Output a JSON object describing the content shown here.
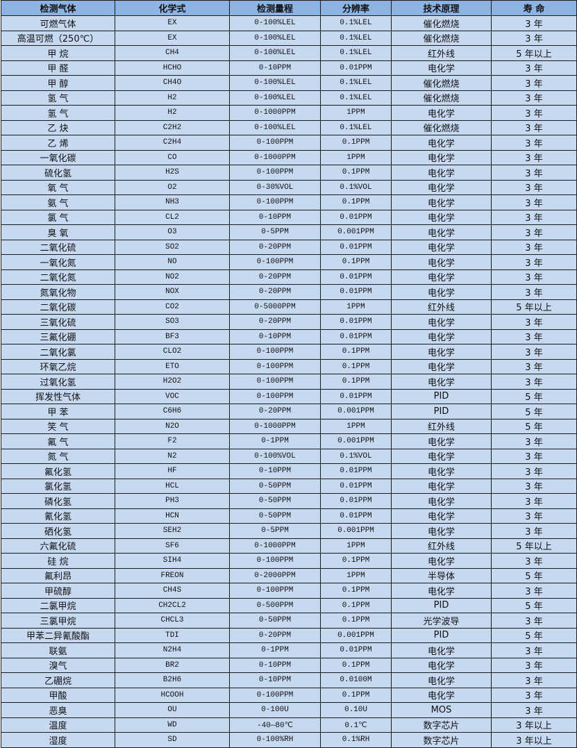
{
  "table": {
    "headers": [
      "检测气体",
      "化学式",
      "检测量程",
      "分辨率",
      "技术原理",
      "寿 命"
    ],
    "rows": [
      [
        "可燃气体",
        "EX",
        "0-100%LEL",
        "0.1%LEL",
        "催化燃烧",
        "3 年"
      ],
      [
        "高温可燃（250℃）",
        "EX",
        "0-100%LEL",
        "0.1%LEL",
        "催化燃烧",
        "3 年"
      ],
      [
        "甲 烷",
        "CH4",
        "0-100%LEL",
        "0.1%LEL",
        "红外线",
        "5 年以上"
      ],
      [
        "甲 醛",
        "HCHO",
        "0-10PPM",
        "0.01PPM",
        "电化学",
        "3 年"
      ],
      [
        "甲 醇",
        "CH4O",
        "0-100%LEL",
        "0.1%LEL",
        "催化燃烧",
        "3 年"
      ],
      [
        "氢 气",
        "H2",
        "0-100%LEL",
        "0.1%LEL",
        "催化燃烧",
        "3 年"
      ],
      [
        "氢 气",
        "H2",
        "0-1000PPM",
        "1PPM",
        "电化学",
        "3 年"
      ],
      [
        "乙 炔",
        "C2H2",
        "0-100%LEL",
        "0.1%LEL",
        "催化燃烧",
        "3 年"
      ],
      [
        "乙 烯",
        "C2H4",
        "0-100PPM",
        "0.1PPM",
        "电化学",
        "3 年"
      ],
      [
        "一氧化碳",
        "CO",
        "0-1000PPM",
        "1PPM",
        "电化学",
        "3 年"
      ],
      [
        "硫化氢",
        "H2S",
        "0-100PPM",
        "0.1PPM",
        "电化学",
        "3 年"
      ],
      [
        "氧 气",
        "O2",
        "0-30%VOL",
        "0.1%VOL",
        "电化学",
        "3 年"
      ],
      [
        "氨 气",
        "NH3",
        "0-100PPM",
        "0.1PPM",
        "电化学",
        "3 年"
      ],
      [
        "氯 气",
        "CL2",
        "0-10PPM",
        "0.01PPM",
        "电化学",
        "3 年"
      ],
      [
        "臭 氧",
        "O3",
        "0-5PPM",
        "0.001PPM",
        "电化学",
        "3 年"
      ],
      [
        "二氧化硫",
        "SO2",
        "0-20PPM",
        "0.01PPM",
        "电化学",
        "3 年"
      ],
      [
        "一氧化氮",
        "NO",
        "0-100PPM",
        "0.1PPM",
        "电化学",
        "3 年"
      ],
      [
        "二氧化氮",
        "NO2",
        "0-20PPM",
        "0.01PPM",
        "电化学",
        "3 年"
      ],
      [
        "氮氧化物",
        "NOX",
        "0-20PPM",
        "0.01PPM",
        "电化学",
        "3 年"
      ],
      [
        "二氧化碳",
        "CO2",
        "0-5000PPM",
        "1PPM",
        "红外线",
        "5 年以上"
      ],
      [
        "三氧化硫",
        "SO3",
        "0-20PPM",
        "0.01PPM",
        "电化学",
        "3 年"
      ],
      [
        "三氟化硼",
        "BF3",
        "0-10PPM",
        "0.01PPM",
        "电化学",
        "3 年"
      ],
      [
        "二氧化氯",
        "CLO2",
        "0-100PPM",
        "0.1PPM",
        "电化学",
        "3 年"
      ],
      [
        "环氧乙烷",
        "ETO",
        "0-100PPM",
        "0.1PPM",
        "电化学",
        "3 年"
      ],
      [
        "过氧化氢",
        "H2O2",
        "0-100PPM",
        "0.1PPM",
        "电化学",
        "3 年"
      ],
      [
        "挥发性气体",
        "VOC",
        "0-100PPM",
        "0.01PPM",
        "PID",
        "5 年"
      ],
      [
        "甲 苯",
        "C6H6",
        "0-20PPM",
        "0.001PPM",
        "PID",
        "5 年"
      ],
      [
        "笑 气",
        "N2O",
        "0-1000PPM",
        "1PPM",
        "红外线",
        "5 年"
      ],
      [
        "氟 气",
        "F2",
        "0-1PPM",
        "0.001PPM",
        "电化学",
        "3 年"
      ],
      [
        "氮 气",
        "N2",
        "0-100%VOL",
        "0.1%VOL",
        "电化学",
        "3 年"
      ],
      [
        "氟化氢",
        "HF",
        "0-10PPM",
        "0.01PPM",
        "电化学",
        "3 年"
      ],
      [
        "氯化氢",
        "HCL",
        "0-50PPM",
        "0.01PPM",
        "电化学",
        "3 年"
      ],
      [
        "磷化氢",
        "PH3",
        "0-50PPM",
        "0.01PPM",
        "电化学",
        "3 年"
      ],
      [
        "氰化氢",
        "HCN",
        "0-50PPM",
        "0.01PPM",
        "电化学",
        "3 年"
      ],
      [
        "硒化氢",
        "SEH2",
        "0-5PPM",
        "0.001PPM",
        "电化学",
        "3 年"
      ],
      [
        "六氟化硫",
        "SF6",
        "0-1000PPM",
        "1PPM",
        "红外线",
        "5 年以上"
      ],
      [
        "硅 烷",
        "SIH4",
        "0-100PPM",
        "0.1PPM",
        "电化学",
        "3 年"
      ],
      [
        "氟利昂",
        "FREON",
        "0-2000PPM",
        "1PPM",
        "半导体",
        "5 年"
      ],
      [
        "甲硫醇",
        "CH4S",
        "0-100PPM",
        "0.1PPM",
        "电化学",
        "3 年"
      ],
      [
        "二氯甲烷",
        "CH2CL2",
        "0-500PPM",
        "0.1PPM",
        "PID",
        "5 年"
      ],
      [
        "三氯甲烷",
        "CHCL3",
        "0-50PPM",
        "0.1PPM",
        "光学波导",
        "3 年"
      ],
      [
        "甲苯二异氰酸酯",
        "TDI",
        "0-20PPM",
        "0.001PPM",
        "PID",
        "5 年"
      ],
      [
        "联氨",
        "N2H4",
        "0-1PPM",
        "0.01PPM",
        "电化学",
        "3 年"
      ],
      [
        "溴气",
        "BR2",
        "0-10PPM",
        "0.1PPM",
        "电化学",
        "3 年"
      ],
      [
        "乙硼烷",
        "B2H6",
        "0-10PPM",
        "0.0100M",
        "电化学",
        "3 年"
      ],
      [
        "甲酸",
        "HCOOH",
        "0-100PPM",
        "0.1PPM",
        "电化学",
        "3 年"
      ],
      [
        "恶臭",
        "OU",
        "0-100U",
        "0.10U",
        "MOS",
        "3 年"
      ],
      [
        "温度",
        "WD",
        "-40—80℃",
        "0.1℃",
        "数字芯片",
        "3 年以上"
      ],
      [
        "湿度",
        "SD",
        "0-100%RH",
        "0.1%RH",
        "数字芯片",
        "3 年以上"
      ]
    ]
  },
  "colors": {
    "header_bg": "#8db3e2",
    "row_bg": "#c6d9f1",
    "border": "#1a1a1a"
  }
}
